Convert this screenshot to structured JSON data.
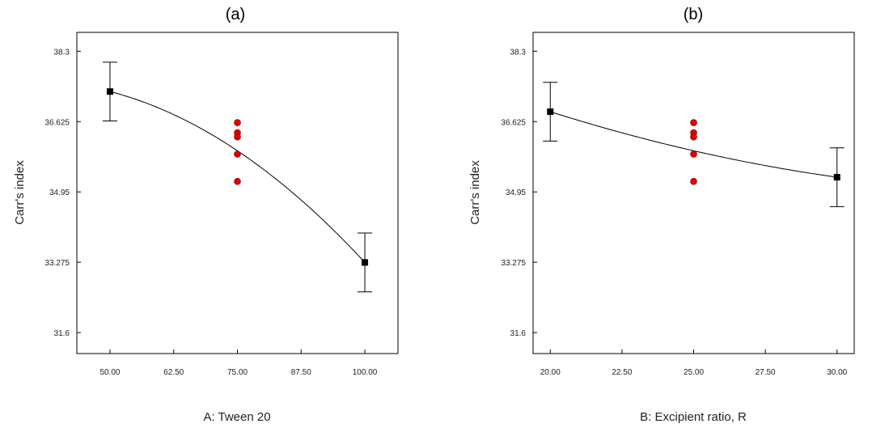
{
  "chart_data": [
    {
      "type": "scatter",
      "title": "(a)",
      "xlabel": "A: Tween 20",
      "ylabel": "Carr's index",
      "xlim": [
        43.5,
        106.5
      ],
      "ylim": [
        31.1,
        38.75
      ],
      "x_ticks": [
        "50.00",
        "62.50",
        "75.00",
        "87.50",
        "100.00"
      ],
      "y_ticks": [
        "31.6",
        "33.275",
        "34.95",
        "36.625",
        "38.3"
      ],
      "grid": false,
      "fit_curve": {
        "x": [
          50,
          75,
          100
        ],
        "y": [
          37.34,
          35.93,
          33.27
        ]
      },
      "means": [
        {
          "x": 50,
          "y": 37.34,
          "ci_low": 36.64,
          "ci_high": 38.04
        },
        {
          "x": 100,
          "y": 33.27,
          "ci_low": 32.57,
          "ci_high": 33.97
        }
      ],
      "design_points": [
        {
          "x": 75,
          "y": 36.6
        },
        {
          "x": 75,
          "y": 36.36
        },
        {
          "x": 75,
          "y": 36.26
        },
        {
          "x": 75,
          "y": 35.85
        },
        {
          "x": 75,
          "y": 35.2
        }
      ],
      "colors": {
        "design_point": "#e00000",
        "mean": "#000000",
        "curve": "#000000"
      }
    },
    {
      "type": "scatter",
      "title": "(b)",
      "xlabel": "B: Excipient ratio, R",
      "ylabel": "Carr's index",
      "xlim": [
        19.4,
        30.6
      ],
      "ylim": [
        31.1,
        38.75
      ],
      "x_ticks": [
        "20.00",
        "22.50",
        "25.00",
        "27.50",
        "30.00"
      ],
      "y_ticks": [
        "31.6",
        "33.275",
        "34.95",
        "36.625",
        "38.3"
      ],
      "grid": false,
      "fit_curve": {
        "x": [
          20,
          25,
          30
        ],
        "y": [
          36.86,
          35.93,
          35.3
        ]
      },
      "means": [
        {
          "x": 20,
          "y": 36.86,
          "ci_low": 36.16,
          "ci_high": 37.56
        },
        {
          "x": 30,
          "y": 35.3,
          "ci_low": 34.6,
          "ci_high": 36.0
        }
      ],
      "design_points": [
        {
          "x": 25,
          "y": 36.6
        },
        {
          "x": 25,
          "y": 36.36
        },
        {
          "x": 25,
          "y": 36.26
        },
        {
          "x": 25,
          "y": 35.85
        },
        {
          "x": 25,
          "y": 35.2
        }
      ],
      "colors": {
        "design_point": "#e00000",
        "mean": "#000000",
        "curve": "#000000"
      }
    }
  ]
}
